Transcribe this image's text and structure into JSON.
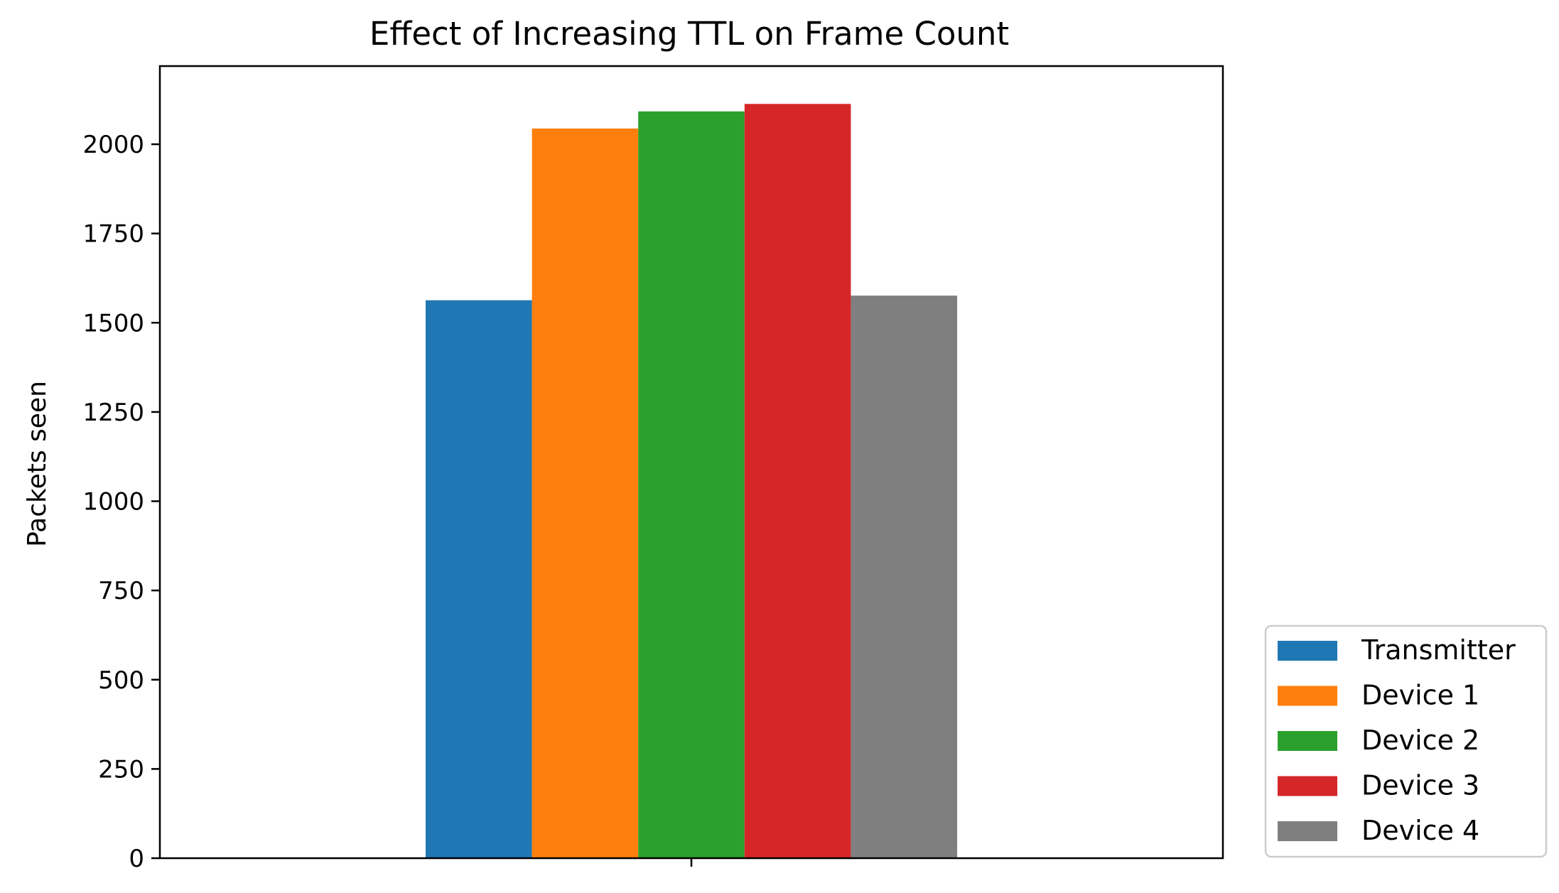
{
  "chart_data": {
    "type": "bar",
    "title": "Effect of Increasing TTL on Frame Count",
    "xlabel": "",
    "ylabel": "Packets seen",
    "categories": [
      ""
    ],
    "series": [
      {
        "name": "Transmitter",
        "values": [
          1563
        ],
        "color": "#1f77b4"
      },
      {
        "name": "Device 1",
        "values": [
          2044
        ],
        "color": "#ff7f0e"
      },
      {
        "name": "Device 2",
        "values": [
          2092
        ],
        "color": "#2ca02c"
      },
      {
        "name": "Device 3",
        "values": [
          2113
        ],
        "color": "#d62728"
      },
      {
        "name": "Device 4",
        "values": [
          1576
        ],
        "color": "#7f7f7f"
      }
    ],
    "ylim": [
      0,
      2219
    ],
    "yticks": [
      0,
      250,
      500,
      750,
      1000,
      1250,
      1500,
      1750,
      2000
    ],
    "grid": false,
    "legend_position": "lower-right-outside"
  }
}
